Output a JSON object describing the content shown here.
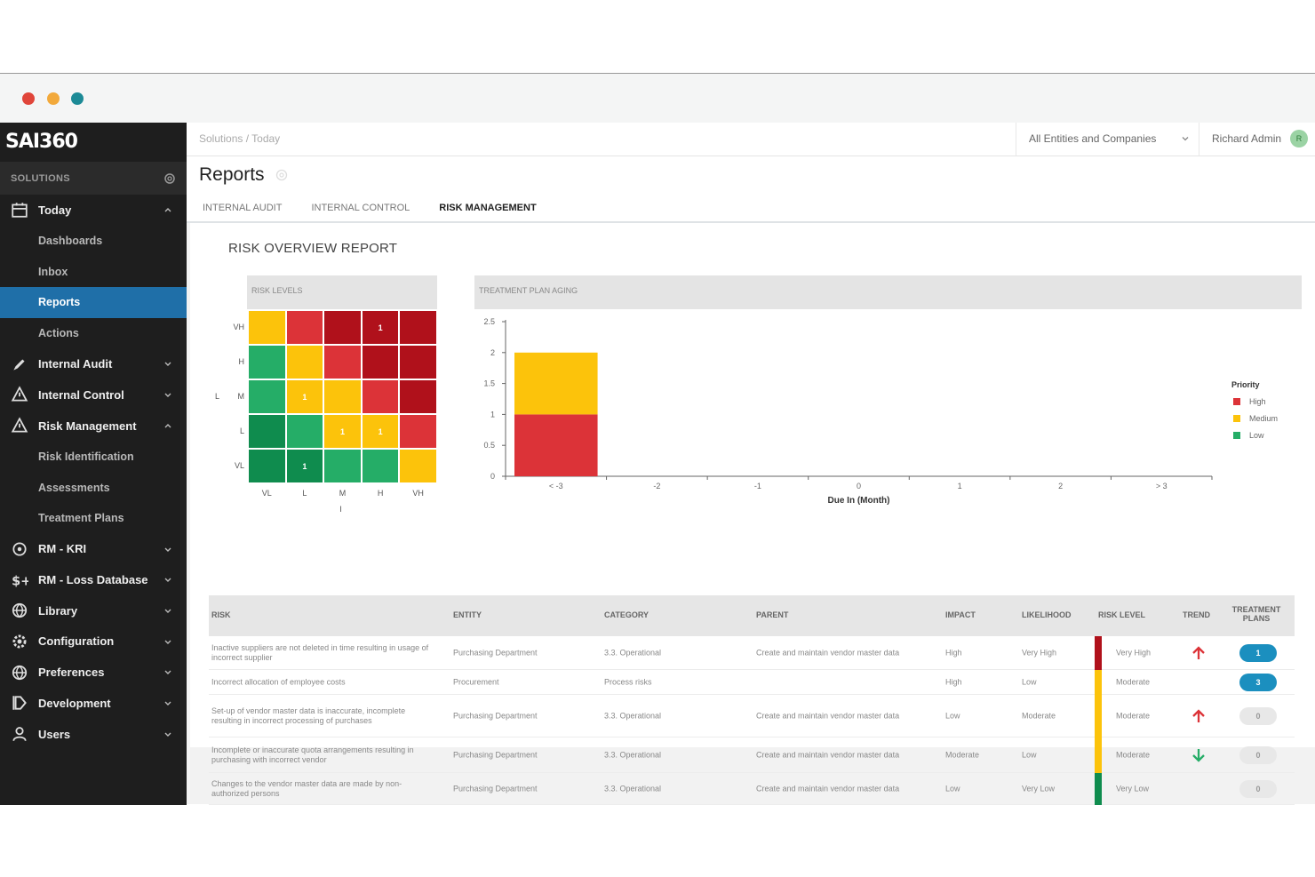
{
  "brand": {
    "logo": "SAI360"
  },
  "sidebar": {
    "section_label": "SOLUTIONS",
    "items": [
      {
        "label": "Today",
        "icon": "calendar-icon",
        "expanded": true
      },
      {
        "label": "Dashboards"
      },
      {
        "label": "Inbox"
      },
      {
        "label": "Reports",
        "active": true
      },
      {
        "label": "Actions"
      },
      {
        "label": "Internal Audit",
        "icon": "pen-icon"
      },
      {
        "label": "Internal Control",
        "icon": "warning-icon"
      },
      {
        "label": "Risk Management",
        "icon": "warning-icon",
        "expanded": true
      },
      {
        "label": "Risk Identification"
      },
      {
        "label": "Assessments"
      },
      {
        "label": "Treatment Plans"
      },
      {
        "label": "RM - KRI",
        "icon": "target-icon"
      },
      {
        "label": "RM - Loss Database",
        "icon": "dollar-icon"
      },
      {
        "label": "Library",
        "icon": "globe-icon"
      },
      {
        "label": "Configuration",
        "icon": "gear-icon"
      },
      {
        "label": "Preferences",
        "icon": "globe-icon"
      },
      {
        "label": "Development",
        "icon": "flag-icon"
      },
      {
        "label": "Users",
        "icon": "user-icon"
      }
    ]
  },
  "topbar": {
    "breadcrumb": "Solutions  /  Today",
    "entity_select": "All Entities and Companies",
    "user_name": "Richard Admin",
    "avatar_initial": "R"
  },
  "header": {
    "title": "Reports",
    "tabs": [
      "INTERNAL AUDIT",
      "INTERNAL CONTROL",
      "RISK MANAGEMENT"
    ],
    "active_tab": "RISK MANAGEMENT"
  },
  "report": {
    "title": "RISK OVERVIEW REPORT",
    "risk_levels": {
      "heading": "RISK LEVELS",
      "y_axis_title": "L",
      "x_axis_title": "I",
      "rows": [
        "VH",
        "H",
        "M",
        "L",
        "VL"
      ],
      "cols": [
        "VL",
        "L",
        "M",
        "H",
        "VH"
      ],
      "colors": {
        "dark_green": "#0f8c4e",
        "green": "#25ad67",
        "yellow": "#fcc30b",
        "red": "#dc3338",
        "dark_red": "#b0111b"
      },
      "grid": [
        [
          "yellow",
          "red",
          "dark_red",
          "dark_red",
          "dark_red"
        ],
        [
          "green",
          "yellow",
          "red",
          "dark_red",
          "dark_red"
        ],
        [
          "green",
          "yellow",
          "yellow",
          "red",
          "dark_red"
        ],
        [
          "dark_green",
          "green",
          "yellow",
          "yellow",
          "red"
        ],
        [
          "dark_green",
          "dark_green",
          "green",
          "green",
          "yellow"
        ]
      ],
      "counts": [
        [
          "",
          "",
          "",
          "1",
          ""
        ],
        [
          "",
          "",
          "",
          "",
          ""
        ],
        [
          "",
          "1",
          "",
          "",
          ""
        ],
        [
          "",
          "",
          "1",
          "1",
          ""
        ],
        [
          "",
          "1",
          "",
          "",
          ""
        ]
      ]
    }
  },
  "chart_data": {
    "type": "bar",
    "stacked": true,
    "title": "TREATMENT PLAN AGING",
    "xlabel": "Due In (Month)",
    "ylabel": "",
    "categories": [
      "< -3",
      "-2",
      "-1",
      "0",
      "1",
      "2",
      "> 3"
    ],
    "ylim": [
      0,
      2.5
    ],
    "yticks": [
      "0",
      "0.5",
      "1",
      "1.5",
      "2",
      "2.5"
    ],
    "legend_title": "Priority",
    "legend_position": "right",
    "series": [
      {
        "name": "High",
        "color": "#dc3338",
        "values": [
          1,
          0,
          0,
          0,
          0,
          0,
          0
        ]
      },
      {
        "name": "Medium",
        "color": "#fcc30b",
        "values": [
          1,
          0,
          0,
          0,
          0,
          0,
          0
        ]
      },
      {
        "name": "Low",
        "color": "#25ad67",
        "values": [
          0,
          0,
          0,
          0,
          0,
          0,
          0
        ]
      }
    ]
  },
  "table": {
    "columns": [
      "RISK",
      "ENTITY",
      "CATEGORY",
      "PARENT",
      "IMPACT",
      "LIKELIHOOD",
      "RISK LEVEL",
      "TREND",
      "TREATMENT PLANS"
    ],
    "rows": [
      {
        "risk": "Inactive suppliers are not deleted in time resulting in usage of incorrect supplier",
        "entity": "Purchasing Department",
        "category": "3.3. Operational",
        "parent": "Create and maintain vendor master data",
        "impact": "High",
        "likelihood": "Very High",
        "level": "Very High",
        "level_color": "#b0111b",
        "trend": "up",
        "plans": "1",
        "plans_active": true
      },
      {
        "risk": "Incorrect allocation of employee costs",
        "entity": "Procurement",
        "category": "Process risks",
        "parent": "",
        "impact": "High",
        "likelihood": "Low",
        "level": "Moderate",
        "level_color": "#fcc30b",
        "trend": "",
        "plans": "3",
        "plans_active": true
      },
      {
        "risk": "Set-up of vendor master data is inaccurate, incomplete resulting in incorrect processing of purchases",
        "entity": "Purchasing Department",
        "category": "3.3. Operational",
        "parent": "Create and maintain vendor master data",
        "impact": "Low",
        "likelihood": "Moderate",
        "level": "Moderate",
        "level_color": "#fcc30b",
        "trend": "up",
        "plans": "0",
        "plans_active": false
      },
      {
        "risk": "Incomplete or inaccurate quota arrangements resulting in purchasing with incorrect vendor",
        "entity": "Purchasing Department",
        "category": "3.3. Operational",
        "parent": "Create and maintain vendor master data",
        "impact": "Moderate",
        "likelihood": "Low",
        "level": "Moderate",
        "level_color": "#fcc30b",
        "trend": "down",
        "plans": "0",
        "plans_active": false
      },
      {
        "risk": "Changes to the vendor master data are made by non-authorized persons",
        "entity": "Purchasing Department",
        "category": "3.3. Operational",
        "parent": "Create and maintain vendor master data",
        "impact": "Low",
        "likelihood": "Very Low",
        "level": "Very Low",
        "level_color": "#0f8c4e",
        "trend": "",
        "plans": "0",
        "plans_active": false
      }
    ]
  }
}
